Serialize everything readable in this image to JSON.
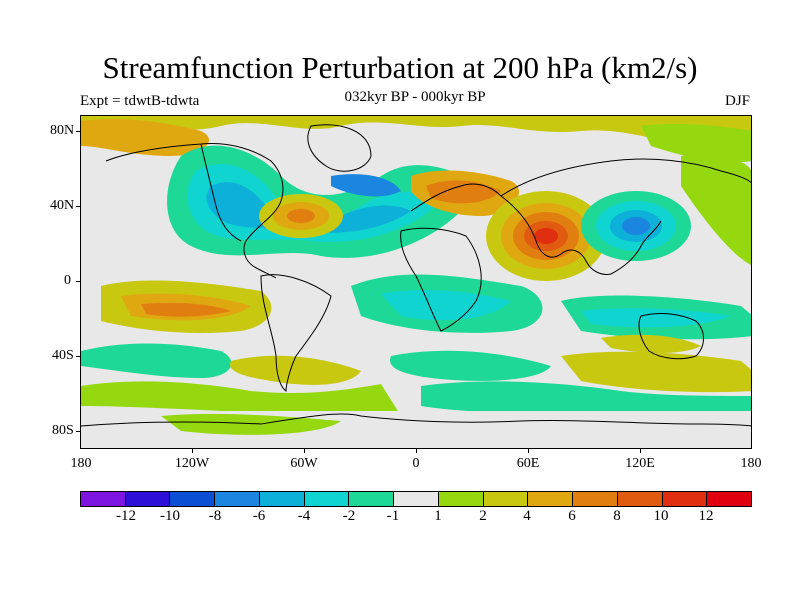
{
  "title": "Streamfunction Perturbation at 200 hPa (km2/s)",
  "subtitle": "032kyr BP - 000kyr BP",
  "experiment": "Expt = tdwtB-tdwta",
  "season": "DJF",
  "lat_labels": [
    "80N",
    "40N",
    "0",
    "40S",
    "80S"
  ],
  "lon_labels": [
    "180",
    "120W",
    "60W",
    "0",
    "60E",
    "120E",
    "180"
  ],
  "colorbar": {
    "colors": [
      "#7d14e0",
      "#2d0fd8",
      "#0a4fd6",
      "#1a86e0",
      "#0cb0d8",
      "#10d4d0",
      "#1ed898",
      "#e8e8e8",
      "#96d810",
      "#c8c810",
      "#e0a810",
      "#e07e10",
      "#e05a10",
      "#e02e10",
      "#e00010"
    ],
    "labels": [
      "-12",
      "-10",
      "-8",
      "-6",
      "-4",
      "-2",
      "-1",
      "1",
      "2",
      "4",
      "6",
      "8",
      "10",
      "12"
    ]
  }
}
